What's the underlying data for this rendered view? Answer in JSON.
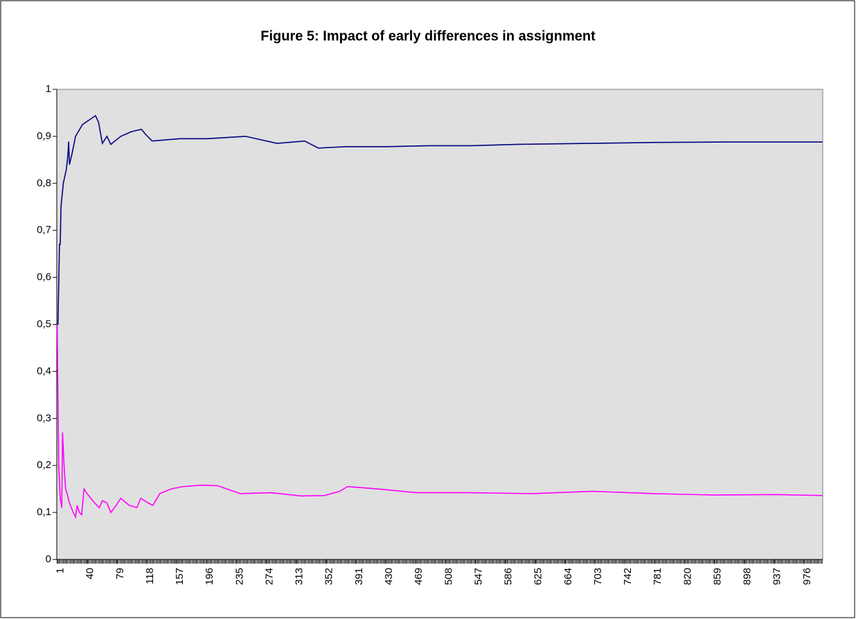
{
  "chart_data": {
    "type": "line",
    "title": "Figure 5: Impact of early differences in assignment",
    "xlim": [
      0.5,
      1000.5
    ],
    "xticks": [
      1,
      40,
      79,
      118,
      157,
      196,
      235,
      274,
      313,
      352,
      391,
      430,
      469,
      508,
      547,
      586,
      625,
      664,
      703,
      742,
      781,
      820,
      859,
      898,
      937,
      976
    ],
    "ylim": [
      0,
      1
    ],
    "yticks": [
      0,
      {
        "value": 0.1,
        "label": "0,1"
      },
      {
        "value": 0.2,
        "label": "0,2"
      },
      {
        "value": 0.3,
        "label": "0,3"
      },
      {
        "value": 0.4,
        "label": "0,4"
      },
      {
        "value": 0.5,
        "label": "0,5"
      },
      {
        "value": 0.6,
        "label": "0,6"
      },
      {
        "value": 0.7,
        "label": "0,7"
      },
      {
        "value": 0.8,
        "label": "0,8"
      },
      {
        "value": 0.9,
        "label": "0,9"
      },
      1
    ],
    "grid": false,
    "series": [
      {
        "color": "#000080",
        "x": [
          1,
          2,
          4,
          5,
          6,
          9,
          13,
          15,
          16,
          17,
          20,
          25,
          34,
          43,
          51,
          55,
          60,
          66,
          71,
          84,
          98,
          111,
          116,
          125,
          161,
          197,
          247,
          288,
          324,
          342,
          378,
          432,
          486,
          541,
          604,
          694,
          785,
          875,
          1000
        ],
        "values": [
          0.5,
          0.5,
          0.67,
          0.67,
          0.75,
          0.8,
          0.83,
          0.86,
          0.889,
          0.84,
          0.86,
          0.9,
          0.925,
          0.935,
          0.944,
          0.93,
          0.885,
          0.9,
          0.883,
          0.9,
          0.91,
          0.915,
          0.905,
          0.89,
          0.895,
          0.895,
          0.9,
          0.885,
          0.89,
          0.875,
          0.878,
          0.878,
          0.88,
          0.88,
          0.883,
          0.885,
          0.887,
          0.888,
          0.888
        ]
      },
      {
        "color": "#ff00ff",
        "x": [
          1,
          3,
          5,
          7,
          8,
          10,
          12,
          14,
          17,
          22,
          25,
          27,
          30,
          33,
          36,
          40,
          50,
          56,
          60,
          66,
          71,
          78,
          84,
          95,
          105,
          110,
          120,
          126,
          135,
          150,
          165,
          190,
          210,
          240,
          280,
          320,
          350,
          370,
          380,
          420,
          470,
          540,
          620,
          700,
          780,
          860,
          940,
          1000
        ],
        "values": [
          0.5,
          0.2,
          0.13,
          0.11,
          0.27,
          0.2,
          0.15,
          0.14,
          0.12,
          0.1,
          0.09,
          0.115,
          0.1,
          0.095,
          0.15,
          0.14,
          0.12,
          0.11,
          0.125,
          0.12,
          0.1,
          0.115,
          0.13,
          0.115,
          0.11,
          0.13,
          0.12,
          0.115,
          0.14,
          0.15,
          0.155,
          0.158,
          0.157,
          0.14,
          0.142,
          0.135,
          0.136,
          0.145,
          0.155,
          0.15,
          0.142,
          0.142,
          0.14,
          0.145,
          0.14,
          0.137,
          0.138,
          0.136
        ]
      }
    ]
  }
}
